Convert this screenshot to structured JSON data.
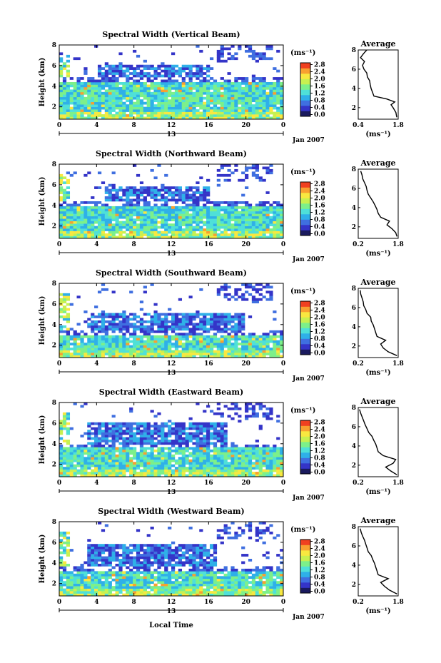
{
  "figure": {
    "xlabel": "Local Time",
    "date_label": "Jan 2007",
    "colorbar_unit": "(ms⁻¹)",
    "colorbar_ticks": [
      "0.0",
      "0.4",
      "0.8",
      "1.2",
      "1.6",
      "2.0",
      "2.4",
      "2.8"
    ],
    "average_title": "Average",
    "average_xlabel": "(ms⁻¹)",
    "day_marker": "13",
    "colors": {
      "colormap": [
        "#1a1a5e",
        "#3434c8",
        "#3f6fe0",
        "#2fb0e8",
        "#4fe0d8",
        "#7cf08a",
        "#c8f050",
        "#f8e840",
        "#f8a030",
        "#f04020"
      ]
    }
  },
  "chart_data": [
    {
      "type": "heatmap",
      "title": "Spectral Width (Vertical Beam)",
      "ylabel": "Height (km)",
      "xlim": [
        0,
        24
      ],
      "ylim": [
        0.8,
        8
      ],
      "xticks": [
        "0",
        "4",
        "8",
        "12",
        "16",
        "20",
        "0"
      ],
      "yticks": [
        "2",
        "4",
        "6",
        "8"
      ],
      "colorbar_range": [
        0,
        3.0
      ],
      "description_levels": {
        "low_layer_top_km": 4.3,
        "mid_layer": [
          4.8,
          6.0
        ],
        "mid_layer_hours": [
          4,
          16
        ]
      },
      "average": {
        "title": "Average",
        "xlim": [
          0.4,
          1.8
        ],
        "xticks": [
          "0.4",
          "1.8"
        ],
        "yticks": [
          "2",
          "4",
          "6",
          "8"
        ],
        "height_km": [
          1.0,
          1.5,
          2.0,
          2.3,
          2.6,
          2.9,
          3.2,
          3.6,
          4.0,
          4.4,
          4.8,
          5.2,
          5.6,
          6.0,
          6.4,
          6.8,
          7.2,
          7.6,
          8.0
        ],
        "value": [
          1.75,
          1.72,
          1.62,
          1.55,
          1.68,
          1.4,
          0.95,
          0.9,
          0.85,
          0.82,
          0.8,
          0.72,
          0.7,
          0.6,
          0.55,
          0.62,
          0.48,
          0.58,
          0.7
        ]
      }
    },
    {
      "type": "heatmap",
      "title": "Spectral Width (Northward Beam)",
      "ylabel": "Height (km)",
      "xlim": [
        0,
        24
      ],
      "ylim": [
        0.8,
        8
      ],
      "xticks": [
        "0",
        "4",
        "8",
        "12",
        "16",
        "20",
        "0"
      ],
      "yticks": [
        "2",
        "4",
        "6",
        "8"
      ],
      "colorbar_range": [
        0,
        3.0
      ],
      "description_levels": {
        "low_layer_top_km": 4.0,
        "mid_layer": [
          4.5,
          5.8
        ],
        "mid_layer_hours": [
          5,
          16
        ]
      },
      "average": {
        "title": "Average",
        "xlim": [
          0.2,
          1.8
        ],
        "xticks": [
          "0.2",
          "1.8"
        ],
        "yticks": [
          "2",
          "4",
          "6",
          "8"
        ],
        "height_km": [
          1.0,
          1.4,
          1.8,
          2.2,
          2.6,
          3.0,
          3.4,
          3.8,
          4.2,
          4.6,
          5.0,
          5.4,
          5.8,
          6.2,
          6.6,
          7.0,
          7.4,
          7.8
        ],
        "value": [
          1.75,
          1.7,
          1.55,
          1.35,
          1.45,
          1.1,
          1.0,
          0.95,
          0.88,
          0.8,
          0.7,
          0.6,
          0.55,
          0.52,
          0.45,
          0.38,
          0.35,
          0.3
        ]
      }
    },
    {
      "type": "heatmap",
      "title": "Spectral Width (Southward Beam)",
      "ylabel": "Height (km)",
      "xlim": [
        0,
        24
      ],
      "ylim": [
        0.8,
        8
      ],
      "xticks": [
        "0",
        "4",
        "8",
        "12",
        "16",
        "20",
        "0"
      ],
      "yticks": [
        "2",
        "4",
        "6",
        "8"
      ],
      "colorbar_range": [
        0,
        3.0
      ],
      "description_levels": {
        "low_layer_top_km": 3.0,
        "mid_layer": [
          3.5,
          5.0
        ],
        "mid_layer_hours": [
          3,
          20
        ]
      },
      "average": {
        "title": "Average",
        "xlim": [
          0.2,
          1.8
        ],
        "xticks": [
          "0.2",
          "1.8"
        ],
        "yticks": [
          "2",
          "4",
          "6",
          "8"
        ],
        "height_km": [
          1.0,
          1.4,
          1.8,
          2.2,
          2.6,
          3.0,
          3.4,
          3.8,
          4.2,
          4.6,
          5.0,
          5.4,
          5.8,
          6.2,
          6.6,
          7.0,
          7.4,
          7.8
        ],
        "value": [
          1.75,
          1.4,
          1.2,
          1.1,
          1.3,
          0.95,
          0.9,
          0.85,
          0.8,
          0.72,
          0.7,
          0.55,
          0.5,
          0.42,
          0.4,
          0.35,
          0.3,
          0.28
        ]
      }
    },
    {
      "type": "heatmap",
      "title": "Spectral Width (Eastward Beam)",
      "ylabel": "Height (km)",
      "xlim": [
        0,
        24
      ],
      "ylim": [
        0.8,
        8
      ],
      "xticks": [
        "0",
        "4",
        "8",
        "12",
        "16",
        "20",
        "0"
      ],
      "yticks": [
        "2",
        "4",
        "6",
        "8"
      ],
      "colorbar_range": [
        0,
        3.0
      ],
      "description_levels": {
        "low_layer_top_km": 3.6,
        "mid_layer": [
          4.0,
          6.0
        ],
        "mid_layer_hours": [
          3,
          18
        ]
      },
      "average": {
        "title": "Average",
        "xlim": [
          0.2,
          1.8
        ],
        "xticks": [
          "0.2",
          "1.8"
        ],
        "yticks": [
          "2",
          "4",
          "6",
          "8"
        ],
        "height_km": [
          1.0,
          1.4,
          1.8,
          2.2,
          2.6,
          3.0,
          3.4,
          3.8,
          4.2,
          4.6,
          5.0,
          5.4,
          5.8,
          6.2,
          6.6,
          7.0,
          7.4,
          7.8
        ],
        "value": [
          1.75,
          1.5,
          1.3,
          1.6,
          1.7,
          1.2,
          1.0,
          0.95,
          0.9,
          0.82,
          0.75,
          0.62,
          0.55,
          0.48,
          0.42,
          0.36,
          0.3,
          0.25
        ]
      }
    },
    {
      "type": "heatmap",
      "title": "Spectral Width (Westward Beam)",
      "ylabel": "Height (km)",
      "xlim": [
        0,
        24
      ],
      "ylim": [
        0.8,
        8
      ],
      "xticks": [
        "0",
        "4",
        "8",
        "12",
        "16",
        "20",
        "0"
      ],
      "yticks": [
        "2",
        "4",
        "6",
        "8"
      ],
      "colorbar_range": [
        0,
        3.0
      ],
      "description_levels": {
        "low_layer_top_km": 3.2,
        "mid_layer": [
          3.6,
          5.8
        ],
        "mid_layer_hours": [
          3,
          17
        ]
      },
      "average": {
        "title": "Average",
        "xlim": [
          0.2,
          1.8
        ],
        "xticks": [
          "0.2",
          "1.8"
        ],
        "yticks": [
          "2",
          "4",
          "6",
          "8"
        ],
        "height_km": [
          1.0,
          1.4,
          1.8,
          2.2,
          2.6,
          3.0,
          3.4,
          3.8,
          4.2,
          4.6,
          5.0,
          5.4,
          5.8,
          6.2,
          6.6,
          7.0,
          7.4,
          7.8
        ],
        "value": [
          1.75,
          1.45,
          1.25,
          1.1,
          1.4,
          1.0,
          0.95,
          0.9,
          0.85,
          0.78,
          0.72,
          0.6,
          0.55,
          0.5,
          0.45,
          0.38,
          0.32,
          0.28
        ]
      }
    }
  ]
}
